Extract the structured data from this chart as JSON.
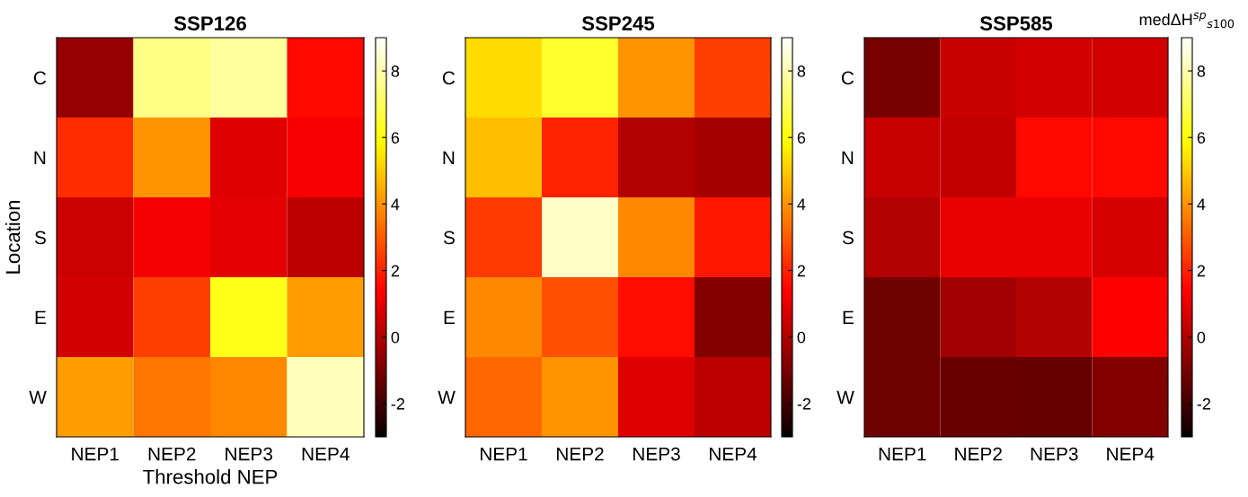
{
  "chart_data": [
    {
      "type": "heatmap",
      "title": "SSP126",
      "xlabel": "Threshold NEP",
      "ylabel": "Location",
      "categories": [
        "NEP1",
        "NEP2",
        "NEP3",
        "NEP4"
      ],
      "y_categories": [
        "C",
        "N",
        "S",
        "E",
        "W"
      ],
      "cells": [
        [
          -0.5,
          7.5,
          7.8,
          1.5
        ],
        [
          2.2,
          4.0,
          0.8,
          1.3
        ],
        [
          0.5,
          1.2,
          0.9,
          0.2
        ],
        [
          0.6,
          2.5,
          6.2,
          4.2
        ],
        [
          4.2,
          3.5,
          3.8,
          8.2
        ]
      ],
      "clim": [
        -3,
        9
      ],
      "cticks": [
        -2,
        0,
        2,
        4,
        6,
        8
      ]
    },
    {
      "type": "heatmap",
      "title": "SSP245",
      "categories": [
        "NEP1",
        "NEP2",
        "NEP3",
        "NEP4"
      ],
      "y_categories": [
        "C",
        "N",
        "S",
        "E",
        "W"
      ],
      "cells": [
        [
          5.3,
          6.5,
          4.0,
          2.5
        ],
        [
          4.8,
          2.0,
          0.0,
          -0.2
        ],
        [
          2.4,
          8.3,
          3.8,
          1.8
        ],
        [
          3.8,
          2.8,
          1.6,
          -0.8
        ],
        [
          3.2,
          4.0,
          0.8,
          0.2
        ]
      ],
      "clim": [
        -3,
        9
      ],
      "cticks": [
        -2,
        0,
        2,
        4,
        6,
        8
      ]
    },
    {
      "type": "heatmap",
      "title": "SSP585",
      "clabel": "medΔH$^{sp}$$_{s100}$",
      "categories": [
        "NEP1",
        "NEP2",
        "NEP3",
        "NEP4"
      ],
      "y_categories": [
        "C",
        "N",
        "S",
        "E",
        "W"
      ],
      "cells": [
        [
          -1.0,
          0.4,
          0.6,
          0.6
        ],
        [
          0.4,
          0.3,
          1.5,
          1.5
        ],
        [
          0.0,
          1.0,
          1.0,
          0.7
        ],
        [
          -1.2,
          -0.3,
          0.0,
          1.4
        ],
        [
          -1.2,
          -1.3,
          -1.4,
          -0.8
        ]
      ],
      "clim": [
        -3,
        9
      ],
      "cticks": [
        -2,
        0,
        2,
        4,
        6,
        8
      ]
    }
  ]
}
